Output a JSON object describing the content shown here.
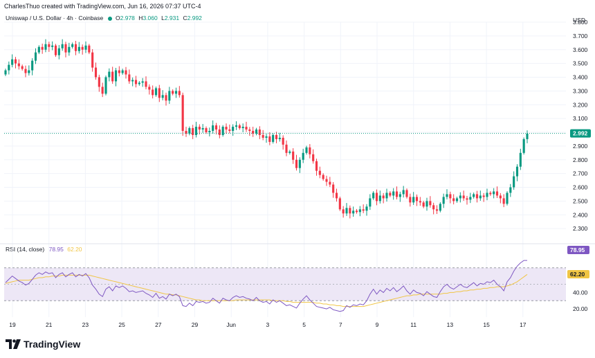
{
  "header": {
    "credit": "CharlesThuo created with TradingView.com, Jun 16, 2026 07:37 UTC-4",
    "currency": "USD"
  },
  "legend": {
    "symbol": "Uniswap / U.S. Dollar · 4h · Coinbase",
    "o_label": "O",
    "o_value": "2.978",
    "h_label": "H",
    "h_value": "3.060",
    "l_label": "L",
    "l_value": "2.931",
    "c_label": "C",
    "c_value": "2.992"
  },
  "rsi_legend": {
    "label": "RSI (14, close)",
    "value": "78.95",
    "ma_value": "62.20"
  },
  "brand": {
    "name": "TradingView"
  },
  "colors": {
    "up": "#089981",
    "down": "#f23645",
    "rsi": "#7e57c2",
    "rsi_ma": "#f0c544",
    "band_fill": "#ede7f6",
    "grid": "#f0f3fa"
  },
  "chart_data": [
    {
      "type": "candlestick",
      "title": "Uniswap / U.S. Dollar · 4h · Coinbase",
      "ylim": [
        2.2,
        3.8
      ],
      "y_ticks": [
        "3.800",
        "3.700",
        "3.600",
        "3.500",
        "3.400",
        "3.300",
        "3.200",
        "3.100",
        "3.000",
        "2.900",
        "2.800",
        "2.700",
        "2.600",
        "2.500",
        "2.400",
        "2.300"
      ],
      "x_ticks": [
        "19",
        "21",
        "23",
        "25",
        "27",
        "29",
        "Jun",
        "3",
        "5",
        "7",
        "9",
        "11",
        "13",
        "15",
        "17"
      ],
      "last_price": "2.992",
      "grid": true,
      "closes": [
        3.45,
        3.49,
        3.53,
        3.5,
        3.48,
        3.46,
        3.43,
        3.45,
        3.52,
        3.58,
        3.62,
        3.6,
        3.64,
        3.62,
        3.63,
        3.56,
        3.61,
        3.64,
        3.58,
        3.62,
        3.64,
        3.59,
        3.62,
        3.6,
        3.63,
        3.58,
        3.47,
        3.4,
        3.33,
        3.28,
        3.4,
        3.44,
        3.37,
        3.45,
        3.43,
        3.45,
        3.42,
        3.37,
        3.38,
        3.35,
        3.36,
        3.37,
        3.33,
        3.31,
        3.27,
        3.32,
        3.25,
        3.27,
        3.23,
        3.3,
        3.28,
        3.3,
        3.27,
        3.01,
        2.99,
        3.03,
        2.98,
        3.04,
        3.02,
        3.03,
        3.0,
        3.01,
        3.05,
        3.02,
        2.98,
        3.04,
        3.02,
        3.01,
        3.04,
        3.05,
        3.03,
        3.04,
        3.02,
        3.01,
        2.99,
        3.02,
        2.98,
        2.96,
        2.97,
        2.93,
        2.98,
        2.95,
        2.96,
        2.91,
        2.85,
        2.86,
        2.8,
        2.74,
        2.8,
        2.85,
        2.89,
        2.84,
        2.79,
        2.72,
        2.69,
        2.66,
        2.64,
        2.62,
        2.56,
        2.52,
        2.44,
        2.41,
        2.45,
        2.41,
        2.43,
        2.42,
        2.44,
        2.43,
        2.46,
        2.52,
        2.56,
        2.5,
        2.54,
        2.52,
        2.56,
        2.54,
        2.57,
        2.53,
        2.55,
        2.58,
        2.53,
        2.49,
        2.53,
        2.5,
        2.49,
        2.46,
        2.5,
        2.47,
        2.44,
        2.43,
        2.48,
        2.53,
        2.55,
        2.52,
        2.5,
        2.52,
        2.54,
        2.52,
        2.51,
        2.53,
        2.55,
        2.52,
        2.54,
        2.53,
        2.56,
        2.55,
        2.57,
        2.54,
        2.52,
        2.48,
        2.56,
        2.6,
        2.68,
        2.75,
        2.85,
        2.95,
        2.99
      ]
    },
    {
      "type": "line",
      "title": "RSI (14, close)",
      "ylim": [
        10,
        90
      ],
      "y_ticks": [
        "60.00",
        "40.00",
        "20.00"
      ],
      "band": [
        30,
        70
      ],
      "series": [
        {
          "name": "RSI (14, close)",
          "values": [
            52,
            56,
            60,
            57,
            54,
            52,
            49,
            51,
            56,
            61,
            64,
            62,
            65,
            63,
            64,
            58,
            62,
            64,
            59,
            62,
            64,
            59,
            62,
            60,
            63,
            58,
            49,
            44,
            38,
            35,
            44,
            47,
            42,
            48,
            46,
            48,
            45,
            41,
            42,
            40,
            41,
            42,
            39,
            37,
            34,
            39,
            33,
            35,
            32,
            38,
            36,
            38,
            35,
            24,
            23,
            27,
            24,
            29,
            28,
            29,
            27,
            28,
            33,
            30,
            27,
            33,
            31,
            30,
            34,
            36,
            34,
            35,
            33,
            32,
            30,
            34,
            30,
            28,
            29,
            26,
            31,
            28,
            30,
            27,
            24,
            25,
            23,
            21,
            27,
            32,
            36,
            31,
            27,
            23,
            22,
            21,
            20,
            22,
            19,
            18,
            17,
            18,
            24,
            22,
            25,
            24,
            26,
            25,
            30,
            38,
            44,
            38,
            43,
            40,
            45,
            42,
            46,
            41,
            44,
            48,
            42,
            38,
            43,
            40,
            39,
            36,
            41,
            38,
            35,
            34,
            41,
            47,
            50,
            46,
            44,
            47,
            50,
            47,
            46,
            49,
            52,
            48,
            51,
            50,
            53,
            52,
            55,
            50,
            47,
            42,
            53,
            58,
            66,
            72,
            76,
            79,
            79
          ]
        },
        {
          "name": "MA",
          "values": [
            51,
            52,
            53,
            54,
            55,
            55,
            55,
            55,
            56,
            57,
            58,
            58,
            59,
            59,
            60,
            60,
            60,
            61,
            61,
            61,
            61,
            61,
            61,
            61,
            61,
            61,
            60,
            59,
            58,
            57,
            56,
            55,
            54,
            53,
            52,
            51,
            50,
            49,
            48,
            47,
            46,
            45,
            44,
            43,
            42,
            41,
            40,
            39,
            38,
            38,
            37,
            37,
            36,
            35,
            34,
            33,
            32,
            31,
            31,
            30,
            30,
            30,
            30,
            30,
            30,
            30,
            30,
            30,
            30,
            31,
            31,
            31,
            31,
            31,
            31,
            31,
            31,
            31,
            31,
            31,
            30,
            30,
            30,
            30,
            29,
            29,
            28,
            28,
            28,
            28,
            28,
            28,
            28,
            27,
            27,
            26,
            26,
            25,
            25,
            24,
            24,
            23,
            23,
            23,
            23,
            23,
            23,
            23,
            24,
            25,
            26,
            27,
            28,
            29,
            30,
            31,
            32,
            33,
            34,
            35,
            36,
            36,
            37,
            37,
            38,
            38,
            38,
            38,
            38,
            38,
            38,
            39,
            39,
            40,
            40,
            41,
            41,
            42,
            42,
            43,
            43,
            44,
            44,
            45,
            45,
            46,
            46,
            47,
            47,
            47,
            48,
            49,
            51,
            53,
            56,
            59,
            62
          ]
        }
      ]
    }
  ]
}
